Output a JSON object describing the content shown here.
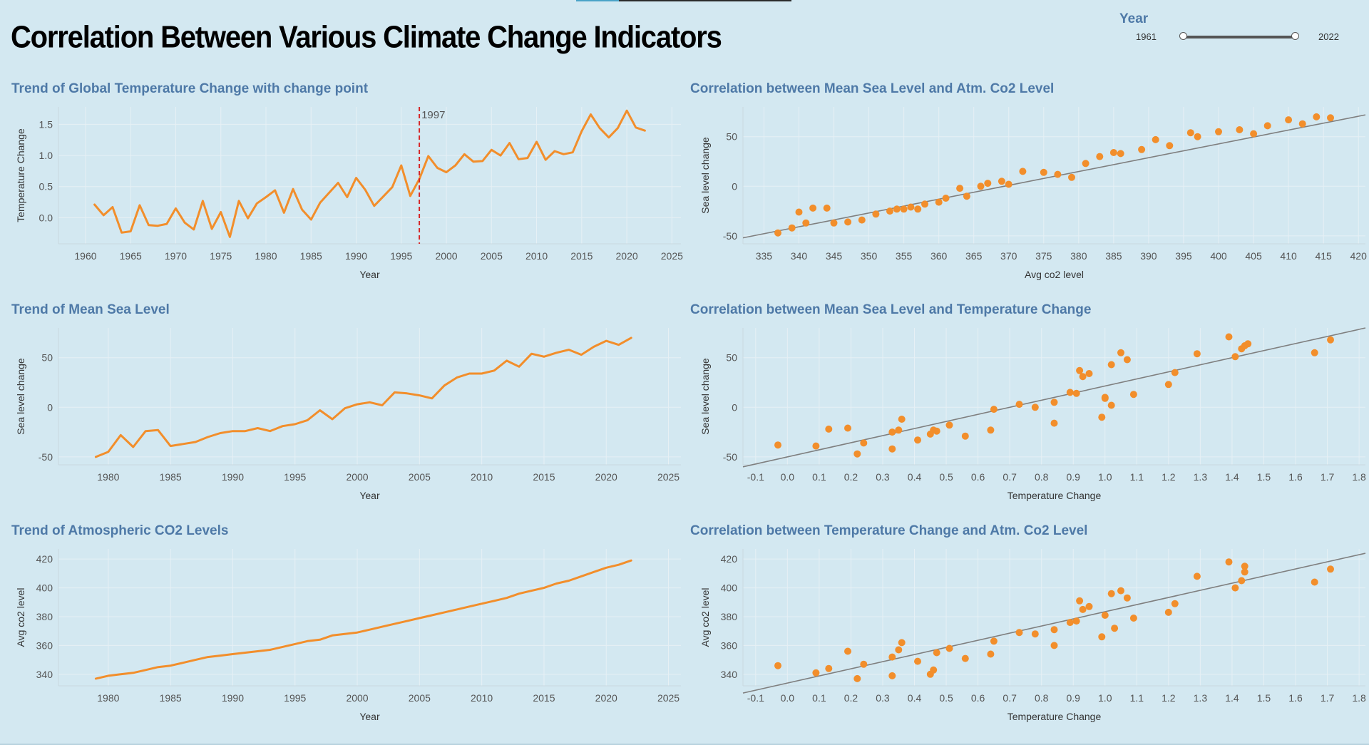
{
  "page_title": "Correlation Between Various Climate Change Indicators",
  "filter": {
    "title": "Year",
    "min_label": "1961",
    "max_label": "2022",
    "range": [
      1961,
      2022
    ]
  },
  "colors": {
    "line": "#f28e2b",
    "point": "#f28e2b",
    "trend": "#7f7f7f",
    "changepoint": "#d62728",
    "title": "#4e79a7"
  },
  "chart_data": [
    {
      "id": "temp-trend",
      "type": "line",
      "title": "Trend of Global Temperature Change with change point",
      "xlabel": "Year",
      "ylabel": "Temperature Change",
      "xlim": [
        1957,
        2026
      ],
      "ylim": [
        -0.42,
        1.78
      ],
      "xticks": [
        1960,
        1965,
        1970,
        1975,
        1980,
        1985,
        1990,
        1995,
        2000,
        2005,
        2010,
        2015,
        2020,
        2025
      ],
      "yticks": [
        0.0,
        0.5,
        1.0,
        1.5
      ],
      "ytick_labels": [
        "0.0",
        "0.5",
        "1.0",
        "1.5"
      ],
      "annotation": {
        "x": 1997,
        "label": "1997"
      },
      "x": [
        1961,
        1962,
        1963,
        1964,
        1965,
        1966,
        1967,
        1968,
        1969,
        1970,
        1971,
        1972,
        1973,
        1974,
        1975,
        1976,
        1977,
        1978,
        1979,
        1980,
        1981,
        1982,
        1983,
        1984,
        1985,
        1986,
        1987,
        1988,
        1989,
        1990,
        1991,
        1992,
        1993,
        1994,
        1995,
        1996,
        1997,
        1998,
        1999,
        2000,
        2001,
        2002,
        2003,
        2004,
        2005,
        2006,
        2007,
        2008,
        2009,
        2010,
        2011,
        2012,
        2013,
        2014,
        2015,
        2016,
        2017,
        2018,
        2019,
        2020,
        2021,
        2022
      ],
      "y": [
        0.21,
        0.04,
        0.17,
        -0.24,
        -0.22,
        0.2,
        -0.12,
        -0.13,
        -0.1,
        0.15,
        -0.08,
        -0.19,
        0.27,
        -0.18,
        0.09,
        -0.31,
        0.27,
        -0.01,
        0.23,
        0.33,
        0.44,
        0.08,
        0.46,
        0.13,
        -0.03,
        0.24,
        0.4,
        0.56,
        0.33,
        0.64,
        0.45,
        0.19,
        0.34,
        0.49,
        0.84,
        0.35,
        0.62,
        0.99,
        0.8,
        0.73,
        0.84,
        1.02,
        0.9,
        0.91,
        1.09,
        1.0,
        1.2,
        0.94,
        0.96,
        1.22,
        0.93,
        1.07,
        1.02,
        1.05,
        1.39,
        1.66,
        1.44,
        1.29,
        1.44,
        1.72,
        1.45,
        1.4
      ]
    },
    {
      "id": "sea-trend",
      "type": "line",
      "title": "Trend of Mean Sea Level",
      "xlabel": "Year",
      "ylabel": "Sea level change",
      "xlim": [
        1976,
        2026
      ],
      "ylim": [
        -58,
        80
      ],
      "xticks": [
        1980,
        1985,
        1990,
        1995,
        2000,
        2005,
        2010,
        2015,
        2020,
        2025
      ],
      "yticks": [
        -50,
        0,
        50
      ],
      "ytick_labels": [
        "-50",
        "0",
        "50"
      ],
      "x": [
        1979,
        1980,
        1981,
        1982,
        1983,
        1984,
        1985,
        1986,
        1987,
        1988,
        1989,
        1990,
        1991,
        1992,
        1993,
        1994,
        1995,
        1996,
        1997,
        1998,
        1999,
        2000,
        2001,
        2002,
        2003,
        2004,
        2005,
        2006,
        2007,
        2008,
        2009,
        2010,
        2011,
        2012,
        2013,
        2014,
        2015,
        2016,
        2017,
        2018,
        2019,
        2020,
        2021,
        2022
      ],
      "y": [
        -50,
        -45,
        -28,
        -40,
        -24,
        -23,
        -39,
        -37,
        -35,
        -30,
        -26,
        -24,
        -24,
        -21,
        -24,
        -19,
        -17,
        -13,
        -3,
        -12,
        -1,
        3,
        5,
        2,
        15,
        14,
        12,
        9,
        22,
        30,
        34,
        34,
        37,
        47,
        41,
        54,
        51,
        55,
        58,
        53,
        61,
        67,
        63,
        70
      ]
    },
    {
      "id": "co2-trend",
      "type": "line",
      "title": "Trend of Atmospheric CO2 Levels",
      "xlabel": "Year",
      "ylabel": "Avg co2 level",
      "xlim": [
        1976,
        2026
      ],
      "ylim": [
        332,
        427
      ],
      "xticks": [
        1980,
        1985,
        1990,
        1995,
        2000,
        2005,
        2010,
        2015,
        2020,
        2025
      ],
      "yticks": [
        340,
        360,
        380,
        400,
        420
      ],
      "ytick_labels": [
        "340",
        "360",
        "380",
        "400",
        "420"
      ],
      "x": [
        1979,
        1980,
        1981,
        1982,
        1983,
        1984,
        1985,
        1986,
        1987,
        1988,
        1989,
        1990,
        1991,
        1992,
        1993,
        1994,
        1995,
        1996,
        1997,
        1998,
        1999,
        2000,
        2001,
        2002,
        2003,
        2004,
        2005,
        2006,
        2007,
        2008,
        2009,
        2010,
        2011,
        2012,
        2013,
        2014,
        2015,
        2016,
        2017,
        2018,
        2019,
        2020,
        2021,
        2022
      ],
      "y": [
        337,
        339,
        340,
        341,
        343,
        345,
        346,
        348,
        350,
        352,
        353,
        354,
        355,
        356,
        357,
        359,
        361,
        363,
        364,
        367,
        368,
        369,
        371,
        373,
        375,
        377,
        379,
        381,
        383,
        385,
        387,
        389,
        391,
        393,
        396,
        398,
        400,
        403,
        405,
        408,
        411,
        414,
        416,
        419
      ]
    },
    {
      "id": "sea-vs-co2",
      "type": "scatter",
      "title": "Correlation between Mean Sea Level and Atm. Co2 Level",
      "xlabel": "Avg co2 level",
      "ylabel": "Sea level change",
      "xlim": [
        332,
        421
      ],
      "ylim": [
        -58,
        80
      ],
      "xticks": [
        335,
        340,
        345,
        350,
        355,
        360,
        365,
        370,
        375,
        380,
        385,
        390,
        395,
        400,
        405,
        410,
        415,
        420
      ],
      "yticks": [
        -50,
        0,
        50
      ],
      "ytick_labels": [
        "-50",
        "0",
        "50"
      ],
      "trendline": [
        [
          332,
          -52
        ],
        [
          421,
          72
        ]
      ],
      "x": [
        337,
        339,
        340,
        341,
        342,
        344,
        345,
        347,
        349,
        351,
        353,
        354,
        355,
        356,
        357,
        358,
        360,
        361,
        363,
        364,
        366,
        367,
        369,
        370,
        372,
        375,
        377,
        379,
        381,
        383,
        385,
        386,
        389,
        391,
        393,
        396,
        397,
        400,
        403,
        405,
        407,
        410,
        412,
        414,
        416
      ],
      "y": [
        -47,
        -42,
        -26,
        -37,
        -22,
        -22,
        -37,
        -36,
        -34,
        -28,
        -25,
        -23,
        -23,
        -21,
        -23,
        -18,
        -16,
        -12,
        -2,
        -10,
        0,
        3,
        5,
        2,
        15,
        14,
        12,
        9,
        23,
        30,
        34,
        33,
        37,
        47,
        41,
        54,
        50,
        55,
        57,
        53,
        61,
        67,
        63,
        70,
        69
      ]
    },
    {
      "id": "sea-vs-temp",
      "type": "scatter",
      "title": "Correlation between Mean Sea Level and Temperature Change",
      "xlabel": "Temperature Change",
      "ylabel": "Sea level change",
      "xlim": [
        -0.14,
        1.82
      ],
      "ylim": [
        -58,
        80
      ],
      "xticks": [
        -0.1,
        0.0,
        0.1,
        0.2,
        0.3,
        0.4,
        0.5,
        0.6,
        0.7,
        0.8,
        0.9,
        1.0,
        1.1,
        1.2,
        1.3,
        1.4,
        1.5,
        1.6,
        1.7,
        1.8
      ],
      "xtick_labels": [
        "-0.1",
        "0.0",
        "0.1",
        "0.2",
        "0.3",
        "0.4",
        "0.5",
        "0.6",
        "0.7",
        "0.8",
        "0.9",
        "1.0",
        "1.1",
        "1.2",
        "1.3",
        "1.4",
        "1.5",
        "1.6",
        "1.7",
        "1.8"
      ],
      "yticks": [
        -50,
        0,
        50
      ],
      "ytick_labels": [
        "-50",
        "0",
        "50"
      ],
      "trendline": [
        [
          -0.14,
          -60
        ],
        [
          1.82,
          80
        ]
      ],
      "x": [
        -0.03,
        0.09,
        0.13,
        0.19,
        0.22,
        0.24,
        0.33,
        0.33,
        0.35,
        0.36,
        0.41,
        0.45,
        0.46,
        0.47,
        0.51,
        0.56,
        0.64,
        0.65,
        0.73,
        0.78,
        0.84,
        0.84,
        0.89,
        0.91,
        0.92,
        0.93,
        0.95,
        0.99,
        1.0,
        1.0,
        1.02,
        1.02,
        1.05,
        1.07,
        1.09,
        1.2,
        1.22,
        1.29,
        1.39,
        1.41,
        1.43,
        1.44,
        1.45,
        1.66,
        1.71
      ],
      "y": [
        -38,
        -39,
        -22,
        -21,
        -47,
        -36,
        -42,
        -25,
        -23,
        -12,
        -33,
        -27,
        -23,
        -24,
        -18,
        -29,
        -23,
        -2,
        3,
        0,
        5,
        -16,
        15,
        14,
        37,
        31,
        34,
        -10,
        10,
        9,
        43,
        2,
        55,
        48,
        13,
        23,
        35,
        54,
        71,
        51,
        59,
        62,
        64,
        55,
        68
      ]
    },
    {
      "id": "temp-vs-co2",
      "type": "scatter",
      "title": "Correlation between Temperature Change and Atm. Co2 Level",
      "xlabel": "Temperature Change",
      "ylabel": "Avg co2 level",
      "xlim": [
        -0.14,
        1.82
      ],
      "ylim": [
        332,
        427
      ],
      "xticks": [
        -0.1,
        0.0,
        0.1,
        0.2,
        0.3,
        0.4,
        0.5,
        0.6,
        0.7,
        0.8,
        0.9,
        1.0,
        1.1,
        1.2,
        1.3,
        1.4,
        1.5,
        1.6,
        1.7,
        1.8
      ],
      "xtick_labels": [
        "-0.1",
        "0.0",
        "0.1",
        "0.2",
        "0.3",
        "0.4",
        "0.5",
        "0.6",
        "0.7",
        "0.8",
        "0.9",
        "1.0",
        "1.1",
        "1.2",
        "1.3",
        "1.4",
        "1.5",
        "1.6",
        "1.7",
        "1.8"
      ],
      "yticks": [
        340,
        360,
        380,
        400,
        420
      ],
      "ytick_labels": [
        "340",
        "360",
        "380",
        "400",
        "420"
      ],
      "trendline": [
        [
          -0.14,
          327
        ],
        [
          1.82,
          424
        ]
      ],
      "x": [
        -0.03,
        0.09,
        0.13,
        0.19,
        0.22,
        0.24,
        0.33,
        0.33,
        0.35,
        0.36,
        0.41,
        0.45,
        0.46,
        0.47,
        0.51,
        0.56,
        0.64,
        0.65,
        0.73,
        0.78,
        0.84,
        0.84,
        0.89,
        0.91,
        0.92,
        0.93,
        0.95,
        0.99,
        1.0,
        1.02,
        1.03,
        1.05,
        1.07,
        1.09,
        1.2,
        1.22,
        1.29,
        1.39,
        1.41,
        1.43,
        1.44,
        1.44,
        1.66,
        1.71
      ],
      "y": [
        346,
        341,
        344,
        356,
        337,
        347,
        339,
        352,
        357,
        362,
        349,
        340,
        343,
        355,
        358,
        351,
        354,
        363,
        369,
        368,
        371,
        360,
        376,
        377,
        391,
        385,
        387,
        366,
        381,
        396,
        372,
        398,
        393,
        379,
        383,
        389,
        408,
        418,
        400,
        405,
        411,
        415,
        404,
        413
      ]
    }
  ]
}
